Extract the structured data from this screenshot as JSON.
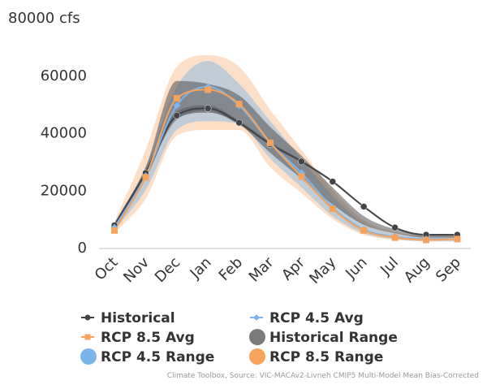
{
  "chart_data": {
    "type": "line",
    "categories": [
      "Oct",
      "Nov",
      "Dec",
      "Jan",
      "Feb",
      "Mar",
      "Apr",
      "May",
      "Jun",
      "Jul",
      "Aug",
      "Sep"
    ],
    "y_ticks": [
      "0",
      "20000",
      "40000",
      "60000",
      "80000 cfs"
    ],
    "ylim": [
      0,
      80000
    ],
    "series": [
      {
        "name": "Historical",
        "color": "#434348",
        "marker": "circle",
        "values": [
          7800,
          26000,
          46000,
          48500,
          43500,
          36000,
          30000,
          23000,
          14300,
          7000,
          4500,
          4500
        ]
      },
      {
        "name": "RCP 4.5 Avg",
        "color": "#7cb5ec",
        "marker": "diamond",
        "values": [
          7000,
          25000,
          49500,
          56000,
          49500,
          36500,
          26000,
          14000,
          6300,
          3800,
          3000,
          3000
        ]
      },
      {
        "name": "RCP 8.5 Avg",
        "color": "#f7a35c",
        "marker": "square",
        "values": [
          6000,
          24500,
          52000,
          55000,
          50000,
          36500,
          24800,
          13500,
          6000,
          3500,
          2700,
          3000
        ]
      }
    ],
    "ranges": [
      {
        "name": "Historical Range",
        "color": "#434348",
        "low": [
          7000,
          25000,
          44500,
          47500,
          42800,
          35800,
          29800,
          22800,
          14000,
          6800,
          4300,
          4300
        ],
        "high": [
          8500,
          27000,
          47500,
          49500,
          44200,
          36800,
          30500,
          23500,
          14600,
          7300,
          4800,
          4800
        ]
      },
      {
        "name": "RCP 4.5 Range",
        "color": "#7cb5ec",
        "low": [
          6000,
          20000,
          41000,
          44000,
          43000,
          31000,
          21000,
          11000,
          5000,
          3000,
          2300,
          2300
        ],
        "high": [
          8000,
          28000,
          56000,
          65000,
          57000,
          44000,
          31000,
          18000,
          8500,
          5000,
          4000,
          4000
        ]
      },
      {
        "name": "RCP 8.5 Range",
        "color": "#f7a35c",
        "low": [
          5000,
          17000,
          39000,
          41000,
          41000,
          28000,
          19000,
          10000,
          4500,
          2800,
          2200,
          2200
        ],
        "high": [
          9000,
          34000,
          63000,
          67000,
          63000,
          48000,
          34000,
          20000,
          9500,
          5500,
          4200,
          4200
        ]
      },
      {
        "name": "Historical Range",
        "color": "#434348",
        "low": [
          7000,
          24000,
          45000,
          47000,
          43000,
          33000,
          24000,
          15000,
          8000,
          5000,
          3500,
          3500
        ],
        "high": [
          8500,
          28000,
          58000,
          57000,
          53000,
          42000,
          32000,
          21000,
          11000,
          6500,
          4800,
          4800
        ]
      }
    ],
    "legend": [
      {
        "label": "Historical",
        "type": "line",
        "marker": "circle",
        "color": "#434348"
      },
      {
        "label": "RCP 4.5 Avg",
        "type": "line",
        "marker": "diamond",
        "color": "#7cb5ec"
      },
      {
        "label": "RCP 8.5 Avg",
        "type": "line",
        "marker": "square",
        "color": "#f7a35c"
      },
      {
        "label": "Historical Range",
        "type": "range",
        "color": "#7a7a7a"
      },
      {
        "label": "RCP 4.5 Range",
        "type": "range",
        "color": "#7cb5ec"
      },
      {
        "label": "RCP 8.5 Range",
        "type": "range",
        "color": "#f7a35c"
      }
    ],
    "legend_position": "bottom",
    "grid": false
  },
  "credit": "Climate Toolbox, Source: VIC-MACAv2-Livneh CMIP5 Multi-Model Mean Bias-Corrected"
}
